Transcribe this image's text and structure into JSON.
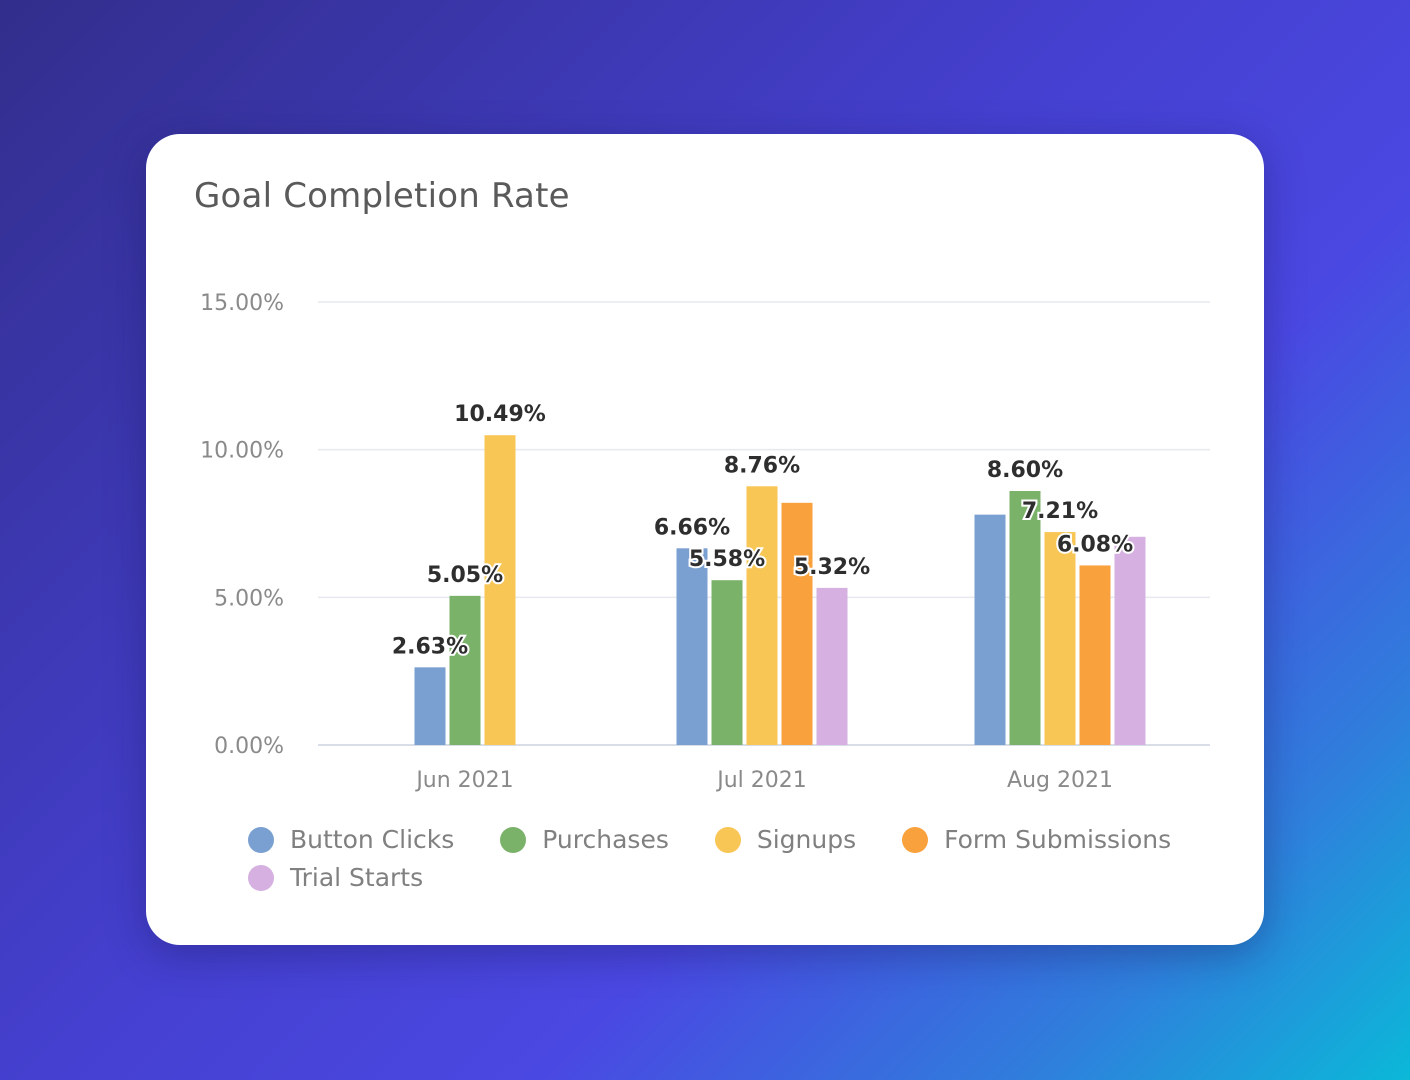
{
  "card": {
    "title": "Goal Completion Rate"
  },
  "chart_data": {
    "type": "bar",
    "categories": [
      "Jun 2021",
      "Jul 2021",
      "Aug 2021"
    ],
    "ylim": [
      0,
      15
    ],
    "yticks": [
      {
        "value": 0,
        "label": "0.00%"
      },
      {
        "value": 5,
        "label": "5.00%"
      },
      {
        "value": 10,
        "label": "10.00%"
      },
      {
        "value": 15,
        "label": "15.00%"
      }
    ],
    "grid": true,
    "legend_position": "bottom",
    "series": [
      {
        "name": "Button Clicks",
        "color": "#7a9fd1",
        "values": [
          2.63,
          6.66,
          7.8
        ],
        "labels": [
          "2.63%",
          "6.66%",
          ""
        ]
      },
      {
        "name": "Purchases",
        "color": "#7ab26a",
        "values": [
          5.05,
          5.58,
          8.6
        ],
        "labels": [
          "5.05%",
          "5.58%",
          "8.60%"
        ]
      },
      {
        "name": "Signups",
        "color": "#f8c655",
        "values": [
          10.49,
          8.76,
          7.21
        ],
        "labels": [
          "10.49%",
          "8.76%",
          "7.21%"
        ]
      },
      {
        "name": "Form Submissions",
        "color": "#f9a13d",
        "values": [
          null,
          8.2,
          6.08
        ],
        "labels": [
          "",
          "",
          "6.08%"
        ]
      },
      {
        "name": "Trial Starts",
        "color": "#d5b0e0",
        "values": [
          null,
          5.32,
          7.05
        ],
        "labels": [
          "",
          "5.32%",
          ""
        ]
      }
    ]
  }
}
